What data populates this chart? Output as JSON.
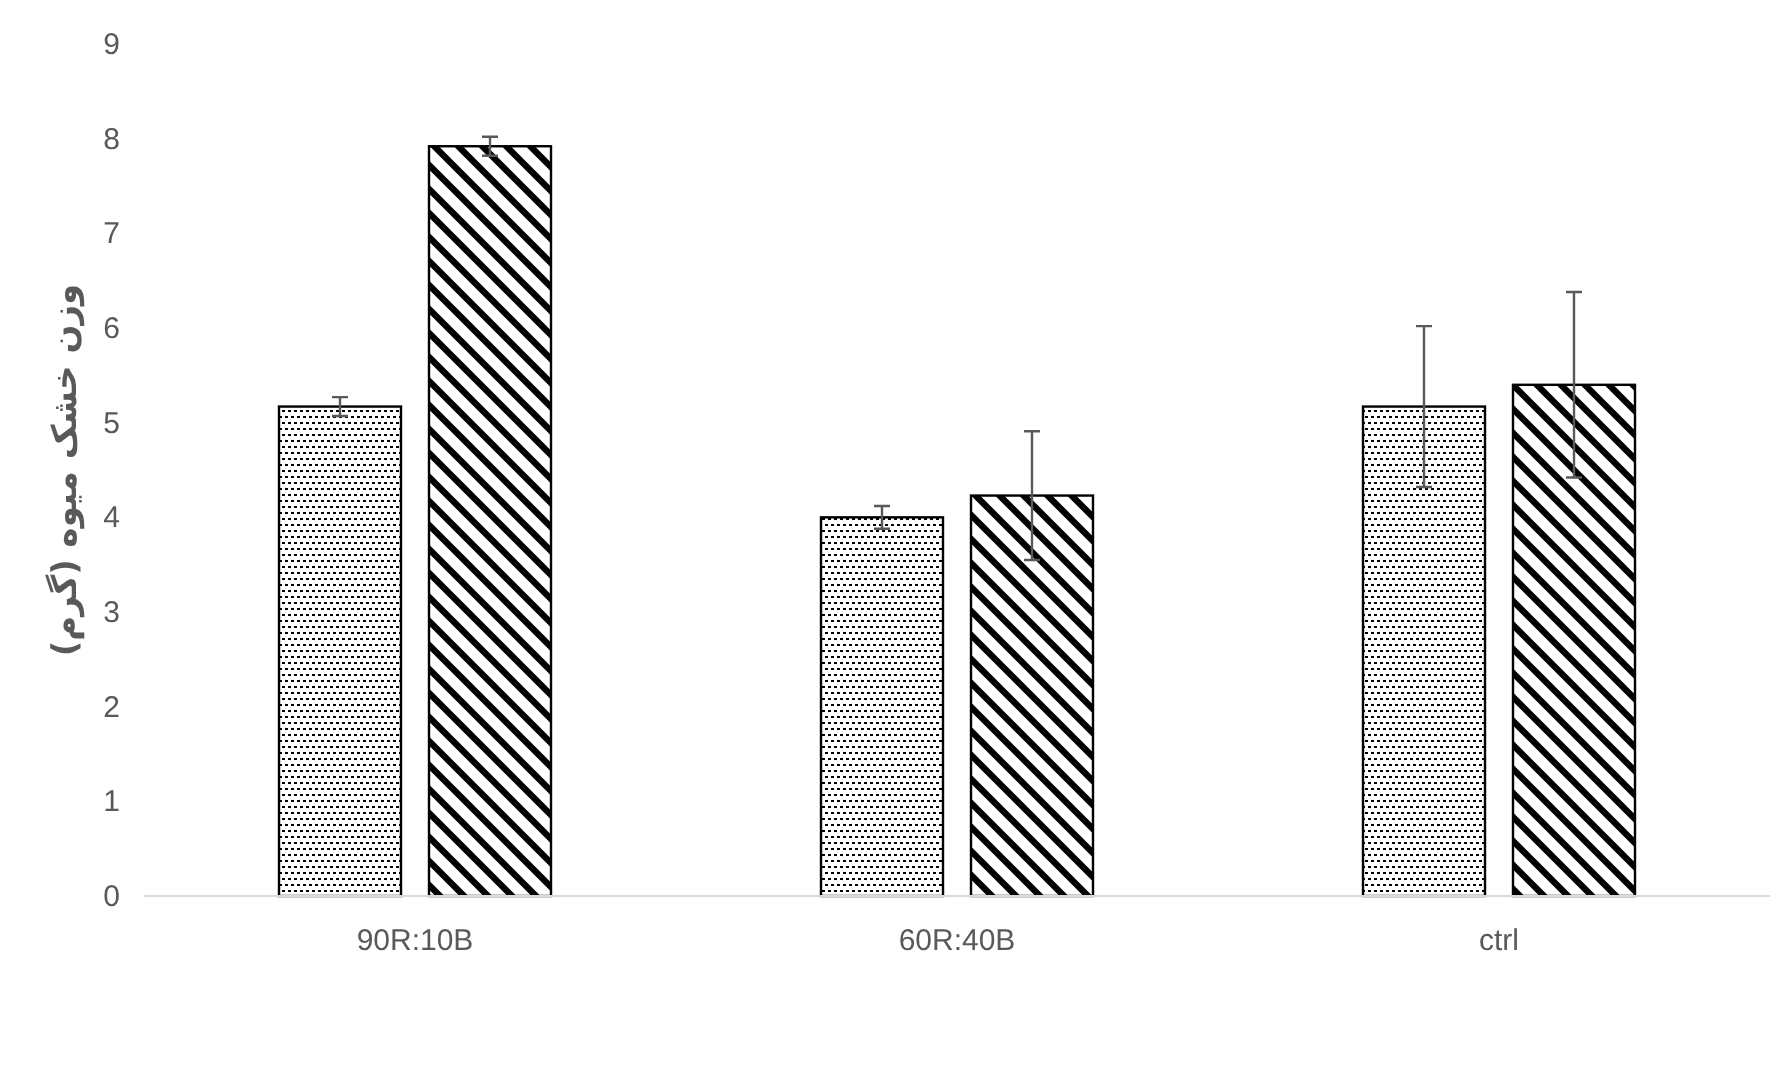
{
  "chart_data": {
    "type": "bar",
    "ylabel": "وزن خشک میوه (گرم)",
    "categories": [
      "90R:10B",
      "60R:40B",
      "ctrl"
    ],
    "series": [
      {
        "color": "#000000",
        "values": [
          5.17,
          4.0,
          5.17
        ],
        "errors": [
          0.1,
          0.12,
          0.85
        ]
      },
      {
        "color": "#000000",
        "values": [
          7.92,
          4.23,
          5.4
        ],
        "errors": [
          0.1,
          0.68,
          0.98
        ]
      }
    ],
    "ylim": [
      0,
      9
    ],
    "yticks": [
      0,
      1,
      2,
      3,
      4,
      5,
      6,
      7,
      8,
      9
    ],
    "grid": false
  }
}
